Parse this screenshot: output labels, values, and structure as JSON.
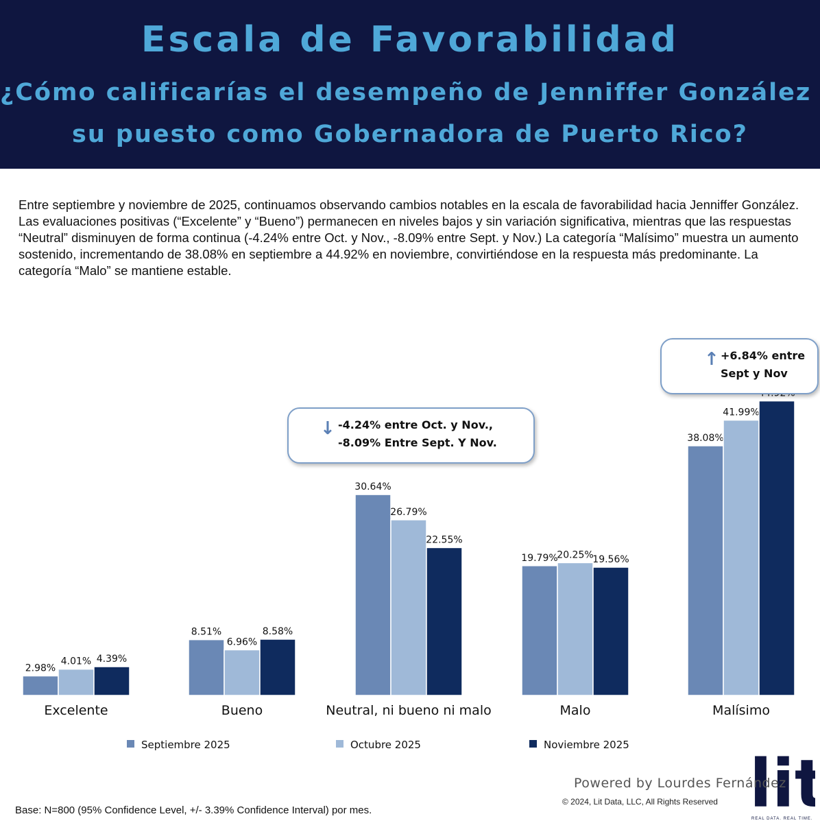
{
  "header": {
    "title": "Escala de Favorabilidad",
    "question_line1": "¿Cómo calificarías el desempeño de Jenniffer González en",
    "question_line2": "su puesto como Gobernadora de Puerto Rico?"
  },
  "summary": "Entre septiembre y noviembre de 2025, continuamos observando cambios notables en la escala de favorabilidad hacia Jenniffer González. Las evaluaciones positivas (“Excelente” y “Bueno”) permanecen en niveles bajos y sin variación significativa, mientras que las respuestas “Neutral” disminuyen de forma continua (-4.24% entre Oct. y Nov., -8.09% entre Sept. y Nov.)  La categoría “Malísimo” muestra un aumento sostenido, incrementando de 38.08% en septiembre a 44.92% en noviembre, convirtiéndose en la respuesta más predominante. La categoría “Malo” se mantiene estable.",
  "chart_data": {
    "type": "bar",
    "categories": [
      "Excelente",
      "Bueno",
      "Neutral, ni bueno ni malo",
      "Malo",
      "Malísimo"
    ],
    "series": [
      {
        "name": "Septiembre 2025",
        "values": [
          2.98,
          8.51,
          30.64,
          19.79,
          38.08
        ],
        "labels": [
          "2.98%",
          "8.51%",
          "30.64%",
          "19.79%",
          "38.08%"
        ],
        "color": "#6a88b5"
      },
      {
        "name": "Octubre 2025",
        "values": [
          4.01,
          6.96,
          26.79,
          20.25,
          41.99
        ],
        "labels": [
          "4.01%",
          "6.96%",
          "26.79%",
          "20.25%",
          "41.99%"
        ],
        "color": "#9fb9d8"
      },
      {
        "name": "Noviembre 2025",
        "values": [
          4.39,
          8.58,
          22.55,
          19.56,
          44.92
        ],
        "labels": [
          "4.39%",
          "8.58%",
          "22.55%",
          "19.56%",
          "44.92%"
        ],
        "color": "#0f2b5e"
      }
    ],
    "ylim": [
      0,
      50
    ],
    "legend_position": "bottom",
    "grid": false
  },
  "callouts": {
    "neutral": {
      "arrow": "↓",
      "text": "-4.24% entre Oct. y Nov., -8.09% Entre Sept. Y Nov."
    },
    "malisimo": {
      "arrow": "↑",
      "text": "+6.84% entre Sept y Nov"
    }
  },
  "footer": {
    "logo": "lit",
    "tagline": "REAL DATA. REAL TIME.",
    "powered": "Powered by Lourdes Fernández",
    "copyright": "© 2024, Lit Data, LLC, All Rights Reserved",
    "base": "Base: N=800 (95% Confidence Level, +/- 3.39% Confidence Interval) por mes."
  },
  "colors": {
    "header_bg": "#0f1640",
    "title": "#4fa8d8"
  }
}
